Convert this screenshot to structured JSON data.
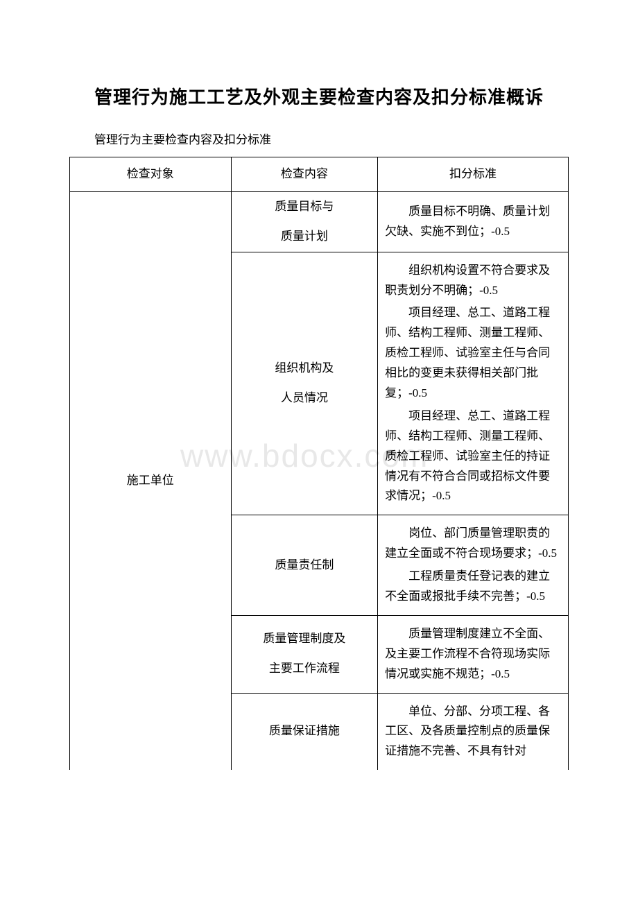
{
  "doc": {
    "title": "管理行为施工工艺及外观主要检查内容及扣分标准概诉",
    "subtitle": "管理行为主要检查内容及扣分标准",
    "watermark": "www.bdocx.com"
  },
  "table": {
    "columns": {
      "col1_width": 220,
      "col2_width": 200,
      "col3_width": 260
    },
    "border_color": "#000000",
    "font_size": 17,
    "header": {
      "c1": "检查对象",
      "c2": "检查内容",
      "c3": "扣分标准"
    },
    "body": {
      "subject": "施工单位",
      "rows": [
        {
          "content_l1": "质量目标与",
          "content_l2": "质量计划",
          "deductions": [
            "质量目标不明确、质量计划欠缺、实施不到位；-0.5"
          ]
        },
        {
          "content_l1": "组织机构及",
          "content_l2": "人员情况",
          "deductions": [
            "组织机构设置不符合要求及职责划分不明确；-0.5",
            "项目经理、总工、道路工程师、结构工程师、测量工程师、质检工程师、试验室主任与合同相比的变更未获得相关部门批复；-0.5",
            "项目经理、总工、道路工程师、结构工程师、测量工程师、质检工程师、试验室主任的持证情况有不符合合同或招标文件要求情况；-0.5"
          ]
        },
        {
          "content_l1": "质量责任制",
          "content_l2": "",
          "deductions": [
            "岗位、部门质量管理职责的建立全面或不符合现场要求；-0.5",
            "工程质量责任登记表的建立不全面或报批手续不完善；-0.5"
          ]
        },
        {
          "content_l1": "质量管理制度及",
          "content_l2": "主要工作流程",
          "deductions": [
            "质量管理制度建立不全面、及主要工作流程不合符现场实际情况或实施不规范；-0.5"
          ]
        },
        {
          "content_l1": "质量保证措施",
          "content_l2": "",
          "deductions": [
            "单位、分部、分项工程、各工区、及各质量控制点的质量保证措施不完善、不具有针对"
          ],
          "open_bottom": true
        }
      ]
    }
  }
}
